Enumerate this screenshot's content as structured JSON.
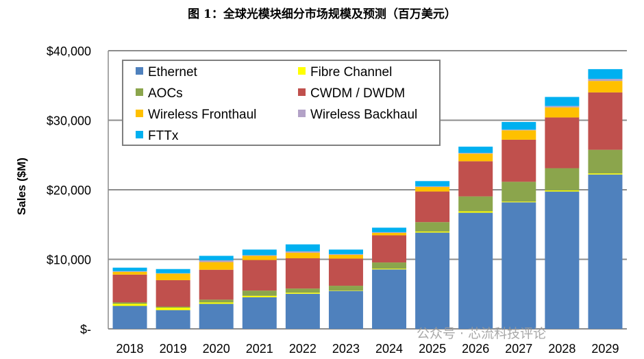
{
  "chart_data": {
    "type": "bar",
    "stacked": true,
    "title": "图 1：全球光模块细分市场规模及预测（百万美元）",
    "ylabel": "Sales ($M)",
    "xlabel": "",
    "ylim": [
      0,
      40000
    ],
    "yticks": [
      0,
      10000,
      20000,
      30000,
      40000
    ],
    "ytick_labels": [
      "$-",
      "$10,000",
      "$20,000",
      "$30,000",
      "$40,000"
    ],
    "grid": true,
    "legend_position": "top-left",
    "categories": [
      "2018",
      "2019",
      "2020",
      "2021",
      "2022",
      "2023",
      "2024",
      "2025",
      "2026",
      "2027",
      "2028",
      "2029"
    ],
    "series": [
      {
        "name": "Ethernet",
        "color": "#4F81BD",
        "values": [
          3300,
          2700,
          3600,
          4550,
          5050,
          5450,
          8550,
          13850,
          16700,
          18200,
          19750,
          22200
        ]
      },
      {
        "name": "Fibre Channel",
        "color": "#FFFF00",
        "values": [
          300,
          350,
          200,
          200,
          150,
          50,
          100,
          150,
          200,
          100,
          150,
          150
        ]
      },
      {
        "name": "AOCs",
        "color": "#8BA54C",
        "values": [
          200,
          150,
          400,
          750,
          600,
          700,
          900,
          1350,
          2150,
          2850,
          3200,
          3400
        ]
      },
      {
        "name": "CWDM / DWDM",
        "color": "#C0504D",
        "values": [
          4000,
          3800,
          4300,
          4400,
          4350,
          3900,
          3900,
          4400,
          5050,
          6050,
          7300,
          8250
        ]
      },
      {
        "name": "Wireless Fronthaul",
        "color": "#FFC000",
        "values": [
          400,
          950,
          1100,
          600,
          800,
          550,
          350,
          650,
          1100,
          1350,
          1450,
          1650
        ]
      },
      {
        "name": "Wireless Backhaul",
        "color": "#B3A2C7",
        "values": [
          100,
          50,
          250,
          100,
          200,
          100,
          100,
          100,
          100,
          100,
          200,
          300
        ]
      },
      {
        "name": "FTTx",
        "color": "#00B0F0",
        "values": [
          500,
          600,
          650,
          800,
          1000,
          650,
          650,
          750,
          900,
          1100,
          1300,
          1400
        ]
      }
    ]
  },
  "watermark": "公众号 · 芯流科技评论"
}
